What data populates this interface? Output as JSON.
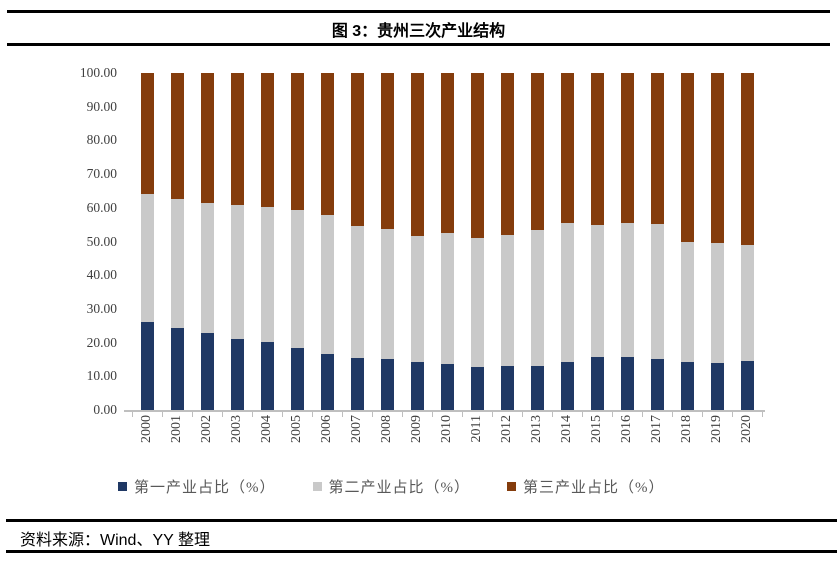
{
  "figure": {
    "title": "图 3：贵州三次产业结构",
    "source": "资料来源：Wind、YY 整理"
  },
  "chart_data": {
    "type": "bar",
    "stacked": true,
    "title": "图 3：贵州三次产业结构",
    "categories": [
      "2000",
      "2001",
      "2002",
      "2003",
      "2004",
      "2005",
      "2006",
      "2007",
      "2008",
      "2009",
      "2010",
      "2011",
      "2012",
      "2013",
      "2014",
      "2015",
      "2016",
      "2017",
      "2018",
      "2019",
      "2020"
    ],
    "series": [
      {
        "name": "第一产业占比（%）",
        "color": "#1f3864",
        "values": [
          26.1,
          24.3,
          22.8,
          21.0,
          20.1,
          18.5,
          16.6,
          15.5,
          15.1,
          14.2,
          13.7,
          12.9,
          13.2,
          13.2,
          14.1,
          15.7,
          15.8,
          15.1,
          14.3,
          13.9,
          14.5
        ]
      },
      {
        "name": "第二产业占比（%）",
        "color": "#c9c9c9",
        "values": [
          38.0,
          38.4,
          38.6,
          39.7,
          40.1,
          40.9,
          41.3,
          39.2,
          38.7,
          37.5,
          38.8,
          38.1,
          38.6,
          40.1,
          41.3,
          39.2,
          39.6,
          40.1,
          35.7,
          35.8,
          34.5
        ]
      },
      {
        "name": "第三产业占比（%）",
        "color": "#843c0c",
        "values": [
          35.9,
          37.3,
          38.6,
          39.3,
          39.8,
          40.6,
          42.1,
          45.3,
          46.2,
          48.3,
          47.5,
          49.0,
          48.2,
          46.7,
          44.6,
          45.1,
          44.6,
          44.8,
          50.0,
          50.3,
          51.0
        ]
      }
    ],
    "xlabel": "",
    "ylabel": "",
    "ylim": [
      0,
      100
    ],
    "ytick_step": 10,
    "ytick_format": "two-decimals",
    "grid": false,
    "legend_position": "bottom",
    "axis_color": "#bfbfbf",
    "label_color": "#3f3f3f",
    "legend_text_color": "#595959"
  }
}
